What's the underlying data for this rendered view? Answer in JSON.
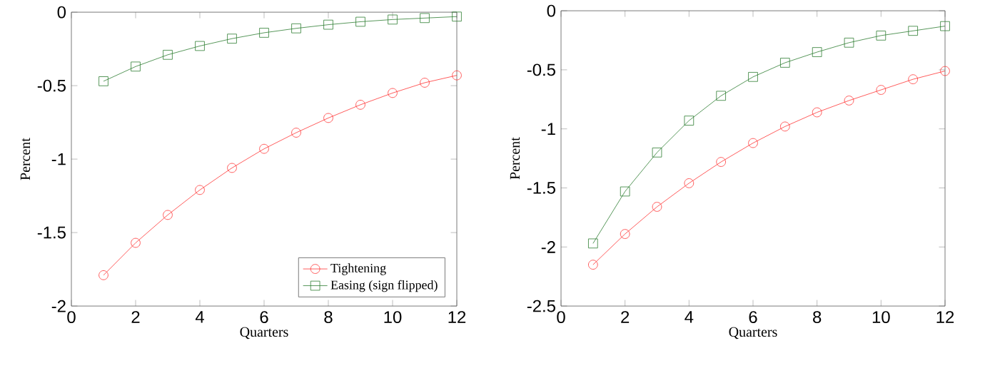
{
  "chart_data": [
    {
      "type": "line",
      "xlabel": "Quarters",
      "ylabel": "Percent",
      "x": [
        1,
        2,
        3,
        4,
        5,
        6,
        7,
        8,
        9,
        10,
        11,
        12
      ],
      "xlim": [
        0,
        12
      ],
      "xticks": [
        0,
        2,
        4,
        6,
        8,
        10,
        12
      ],
      "ylim": [
        -2,
        0
      ],
      "yticks": [
        -2,
        -1.5,
        -1,
        -0.5,
        0
      ],
      "legend": "bottom right",
      "line_style": "solid",
      "series": [
        {
          "name": "Tightening",
          "color": "#ff3333",
          "marker": "circle",
          "values": [
            -1.79,
            -1.57,
            -1.38,
            -1.21,
            -1.06,
            -0.93,
            -0.82,
            -0.72,
            -0.63,
            -0.55,
            -0.48,
            -0.43
          ]
        },
        {
          "name": "Easing (sign flipped)",
          "color": "#2e7d32",
          "marker": "square",
          "values": [
            -0.47,
            -0.37,
            -0.29,
            -0.23,
            -0.18,
            -0.14,
            -0.11,
            -0.085,
            -0.065,
            -0.05,
            -0.04,
            -0.03
          ]
        }
      ]
    },
    {
      "type": "line",
      "xlabel": "Quarters",
      "ylabel": "Percent",
      "x": [
        1,
        2,
        3,
        4,
        5,
        6,
        7,
        8,
        9,
        10,
        11,
        12
      ],
      "xlim": [
        0,
        12
      ],
      "xticks": [
        0,
        2,
        4,
        6,
        8,
        10,
        12
      ],
      "ylim": [
        -2.5,
        0
      ],
      "yticks": [
        -2.5,
        -2,
        -1.5,
        -1,
        -0.5,
        0
      ],
      "line_style": "solid",
      "series": [
        {
          "color": "#ff3333",
          "marker": "circle",
          "values": [
            -2.15,
            -1.89,
            -1.66,
            -1.46,
            -1.28,
            -1.12,
            -0.98,
            -0.86,
            -0.76,
            -0.67,
            -0.58,
            -0.51
          ]
        },
        {
          "color": "#2e7d32",
          "marker": "square",
          "values": [
            -1.97,
            -1.53,
            -1.2,
            -0.93,
            -0.72,
            -0.56,
            -0.44,
            -0.35,
            -0.27,
            -0.21,
            -0.17,
            -0.13
          ]
        }
      ]
    }
  ]
}
